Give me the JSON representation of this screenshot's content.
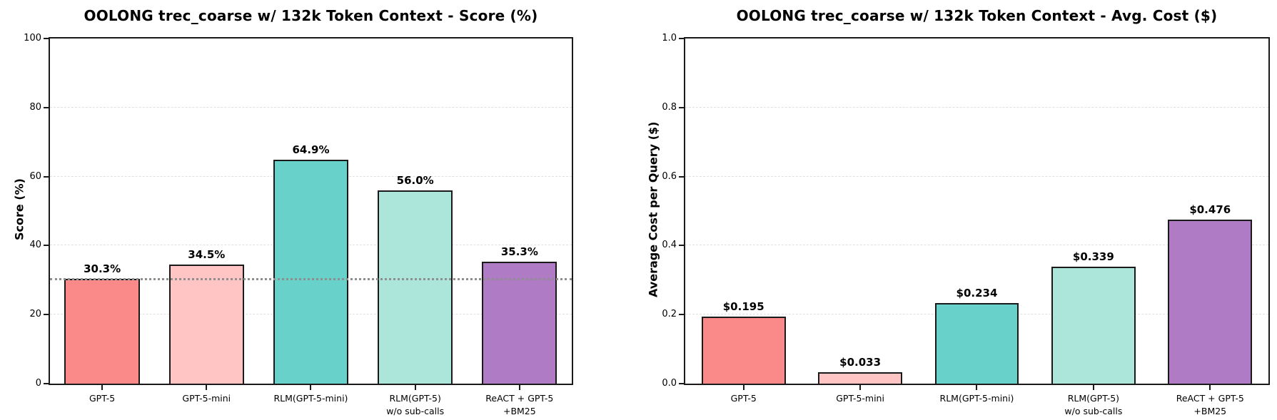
{
  "chart_data": [
    {
      "type": "bar",
      "title": "OOLONG trec_coarse w/ 132k Token Context - Score (%)",
      "ylabel": "Score (%)",
      "xlabel": "",
      "categories": [
        "GPT-5",
        "GPT-5-mini",
        "RLM(GPT-5-mini)",
        "RLM(GPT-5)\nw/o sub-calls",
        "ReACT + GPT-5\n+BM25"
      ],
      "values": [
        30.3,
        34.5,
        64.9,
        56.0,
        35.3
      ],
      "value_labels": [
        "30.3%",
        "34.5%",
        "64.9%",
        "56.0%",
        "35.3%"
      ],
      "ylim": [
        0,
        100
      ],
      "yticks": [
        0,
        20,
        40,
        60,
        80,
        100
      ],
      "ytick_labels": [
        "0",
        "20",
        "40",
        "60",
        "80",
        "100"
      ],
      "grid": "horizontal-dashed",
      "baseline": 30,
      "legend": "none"
    },
    {
      "type": "bar",
      "title": "OOLONG trec_coarse w/ 132k Token Context - Avg. Cost ($)",
      "ylabel": "Average Cost per Query ($)",
      "xlabel": "",
      "categories": [
        "GPT-5",
        "GPT-5-mini",
        "RLM(GPT-5-mini)",
        "RLM(GPT-5)\nw/o sub-calls",
        "ReACT + GPT-5\n+BM25"
      ],
      "values": [
        0.195,
        0.033,
        0.234,
        0.339,
        0.476
      ],
      "value_labels": [
        "$0.195",
        "$0.033",
        "$0.234",
        "$0.339",
        "$0.476"
      ],
      "ylim": [
        0,
        1.0
      ],
      "yticks": [
        0,
        0.2,
        0.4,
        0.6,
        0.8,
        1.0
      ],
      "ytick_labels": [
        "0.0",
        "0.2",
        "0.4",
        "0.6",
        "0.8",
        "1.0"
      ],
      "grid": "horizontal-dashed",
      "baseline": null,
      "legend": "none"
    }
  ],
  "style": {
    "bar_colors": [
      "#FA8A8A",
      "#FFC4C4",
      "#68D2CA",
      "#ACE6DB",
      "#AF7BC5"
    ],
    "bar_edge_color": "#1a1a1a",
    "grid_color": "#e0e0e0",
    "baseline_color": "#8f8f8f",
    "background": "#ffffff",
    "text_color": "#000000"
  }
}
